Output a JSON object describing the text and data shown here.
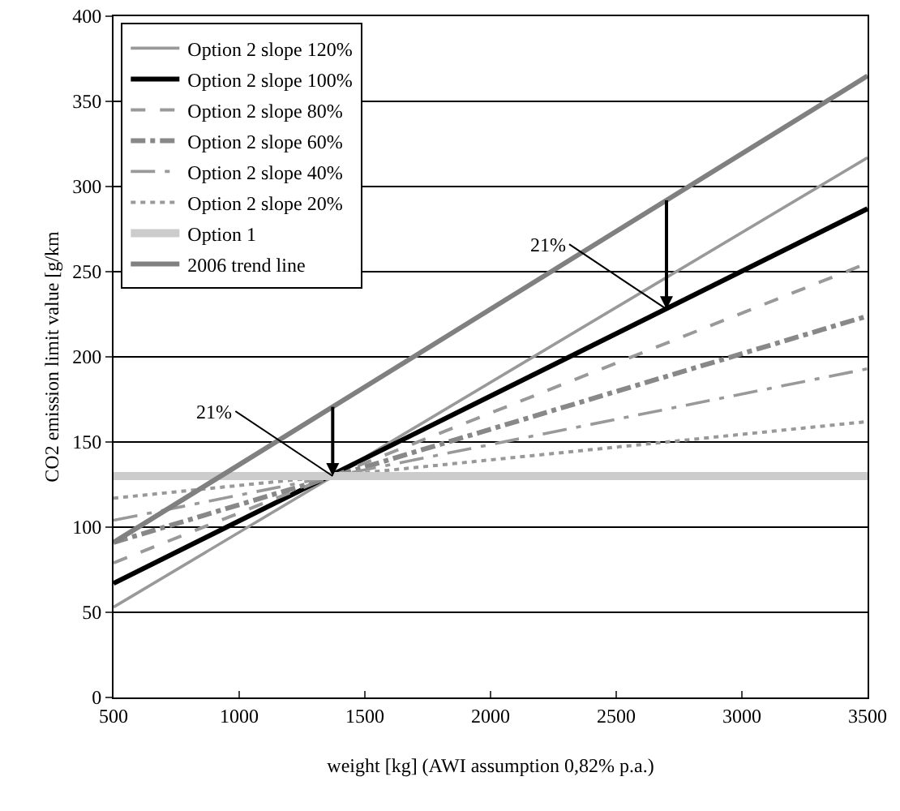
{
  "chart_data": {
    "type": "line",
    "xlabel": "weight [kg] (AWI assumption 0,82% p.a.)",
    "ylabel": "CO2 emission limit value [g/km",
    "x": [
      500,
      3500
    ],
    "xlim": [
      500,
      3500
    ],
    "xticks": [
      500,
      1000,
      1500,
      2000,
      2500,
      3000,
      3500
    ],
    "ylim": [
      0,
      400
    ],
    "yticks": [
      0,
      50,
      100,
      150,
      200,
      250,
      300,
      350,
      400
    ],
    "grid": "y",
    "legend": "top left",
    "marker": "none",
    "series": [
      {
        "name": "Option 2 slope 120%",
        "color": "#999999",
        "line_style": "solid",
        "values": [
          53,
          317
        ]
      },
      {
        "name": "Option 2 slope 100%",
        "color": "#000000",
        "line_style": "solid",
        "values": [
          67,
          287
        ]
      },
      {
        "name": "Option 2 slope 80%",
        "color": "#999999",
        "line_style": "dashed",
        "values": [
          79,
          255
        ]
      },
      {
        "name": "Option 2 slope 60%",
        "color": "#888888",
        "line_style": "dashdot",
        "values": [
          91,
          224
        ]
      },
      {
        "name": "Option 2 slope 40%",
        "color": "#999999",
        "line_style": "longdashdot",
        "values": [
          104,
          193
        ]
      },
      {
        "name": "Option 2 slope 20%",
        "color": "#999999",
        "line_style": "dotted",
        "values": [
          117,
          162
        ]
      },
      {
        "name": "Option 1",
        "color": "#cccccc",
        "line_style": "solid",
        "values": [
          130,
          130
        ]
      },
      {
        "name": "2006 trend line",
        "color": "#808080",
        "line_style": "solid",
        "values": [
          91,
          365
        ]
      }
    ],
    "annotations": [
      {
        "text": "21%",
        "x": 1372,
        "y": 130
      },
      {
        "text": "21%",
        "x": 2700,
        "y": 228
      }
    ]
  }
}
